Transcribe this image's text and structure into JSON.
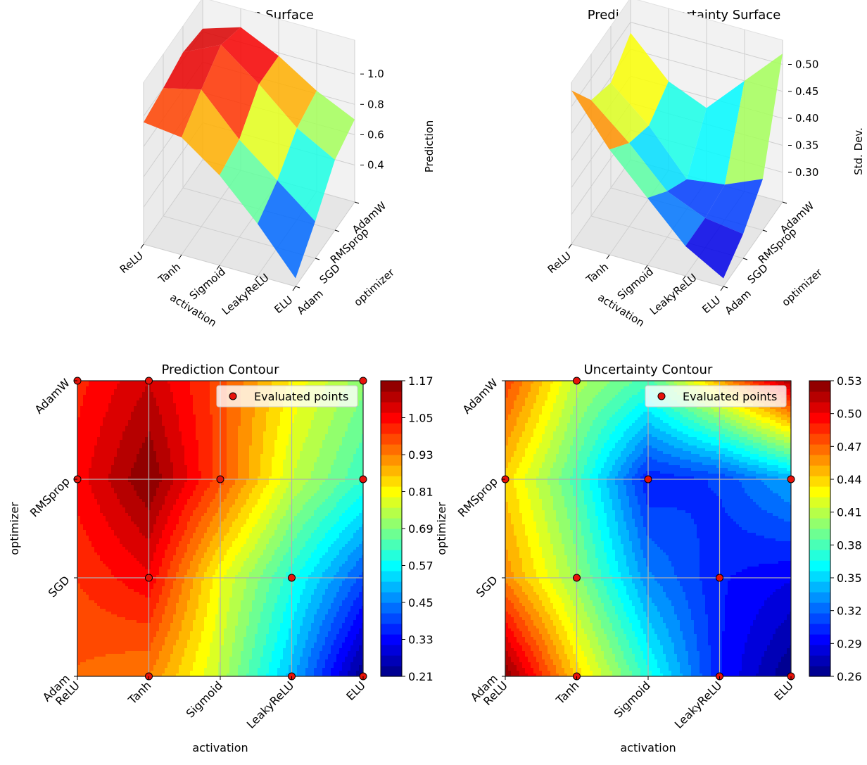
{
  "chart_data": [
    {
      "type": "surface3d",
      "title": "Prediction Surface",
      "xlabel": "activation",
      "ylabel": "optimizer",
      "zlabel": "Prediction",
      "x_categories": [
        "ReLU",
        "Tanh",
        "Sigmoid",
        "LeakyReLU",
        "ELU"
      ],
      "y_categories": [
        "Adam",
        "SGD",
        "RMSprop",
        "AdamW"
      ],
      "z_ticks": [
        "0.4",
        "0.6",
        "0.8",
        "1.0"
      ],
      "zlim": [
        0.21,
        1.17
      ],
      "z": [
        [
          0.96,
          0.93,
          0.75,
          0.5,
          0.21
        ],
        [
          1.0,
          1.06,
          0.8,
          0.6,
          0.4
        ],
        [
          1.05,
          1.17,
          0.98,
          0.76,
          0.62
        ],
        [
          1.02,
          1.1,
          0.98,
          0.82,
          0.7
        ]
      ]
    },
    {
      "type": "surface3d",
      "title": "Prediction Uncertainty Surface",
      "xlabel": "activation",
      "ylabel": "optimizer",
      "zlabel": "Std. Dev.",
      "x_categories": [
        "ReLU",
        "Tanh",
        "Sigmoid",
        "LeakyReLU",
        "ELU"
      ],
      "y_categories": [
        "Adam",
        "SGD",
        "RMSprop",
        "AdamW"
      ],
      "z_ticks": [
        "0.30",
        "0.35",
        "0.40",
        "0.45",
        "0.50"
      ],
      "zlim": [
        0.26,
        0.53
      ],
      "z": [
        [
          0.53,
          0.44,
          0.37,
          0.3,
          0.26
        ],
        [
          0.46,
          0.4,
          0.33,
          0.3,
          0.29
        ],
        [
          0.44,
          0.38,
          0.3,
          0.31,
          0.34
        ],
        [
          0.48,
          0.41,
          0.38,
          0.45,
          0.52
        ]
      ]
    },
    {
      "type": "contour",
      "title": "Prediction Contour",
      "xlabel": "activation",
      "ylabel": "optimizer",
      "x_categories": [
        "ReLU",
        "Tanh",
        "Sigmoid",
        "LeakyReLU",
        "ELU"
      ],
      "y_categories": [
        "Adam",
        "SGD",
        "RMSprop",
        "AdamW"
      ],
      "zlim": [
        0.21,
        1.17
      ],
      "colorbar_ticks": [
        "0.21",
        "0.33",
        "0.45",
        "0.57",
        "0.69",
        "0.81",
        "0.93",
        "1.05",
        "1.17"
      ],
      "legend": "Evaluated points",
      "legend_position": "upper right",
      "points": [
        [
          0,
          2
        ],
        [
          0,
          3
        ],
        [
          1,
          0
        ],
        [
          1,
          1
        ],
        [
          1,
          3
        ],
        [
          2,
          2
        ],
        [
          3,
          0
        ],
        [
          3,
          1
        ],
        [
          4,
          0
        ],
        [
          4,
          2
        ],
        [
          4,
          3
        ]
      ]
    },
    {
      "type": "contour",
      "title": "Uncertainty Contour",
      "xlabel": "activation",
      "ylabel": "optimizer",
      "x_categories": [
        "ReLU",
        "Tanh",
        "Sigmoid",
        "LeakyReLU",
        "ELU"
      ],
      "y_categories": [
        "Adam",
        "SGD",
        "RMSprop",
        "AdamW"
      ],
      "zlim": [
        0.26,
        0.53
      ],
      "colorbar_ticks": [
        "0.26",
        "0.29",
        "0.32",
        "0.35",
        "0.38",
        "0.41",
        "0.44",
        "0.47",
        "0.50",
        "0.53"
      ],
      "legend": "Evaluated points",
      "legend_position": "upper right",
      "points": [
        [
          0,
          2
        ],
        [
          1,
          0
        ],
        [
          1,
          1
        ],
        [
          1,
          3
        ],
        [
          2,
          2
        ],
        [
          3,
          0
        ],
        [
          3,
          1
        ],
        [
          4,
          0
        ],
        [
          4,
          2
        ]
      ]
    }
  ]
}
